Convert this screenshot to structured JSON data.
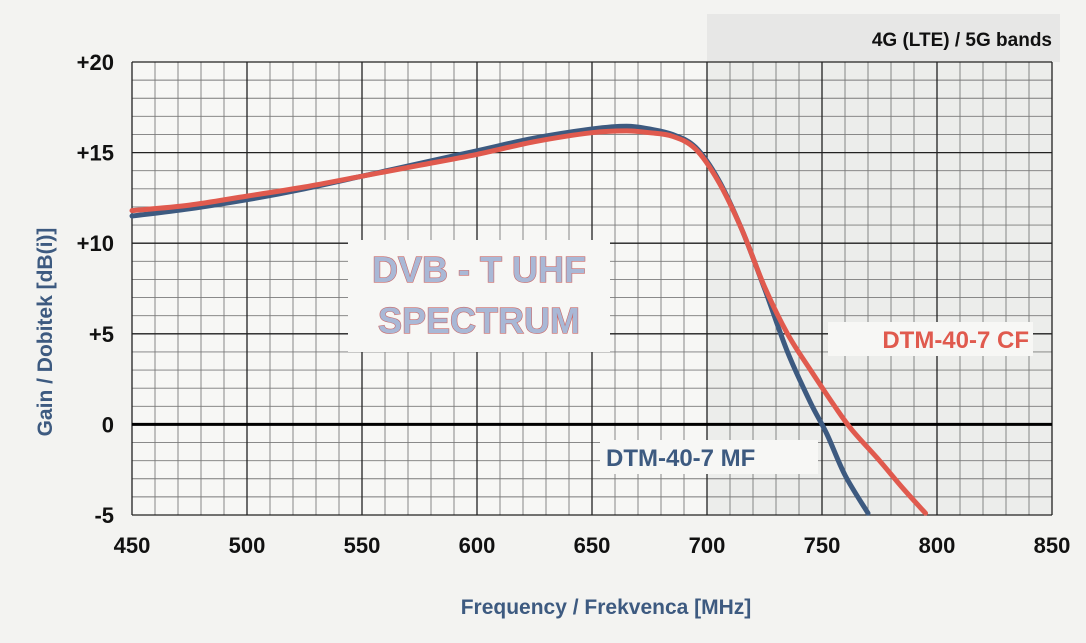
{
  "chart_data": {
    "type": "line",
    "title": "",
    "xlabel": "Frequency / Frekvenca  [MHz]",
    "ylabel": "Gain / Dobitek  [dB(i)]",
    "xlim": [
      450,
      850
    ],
    "ylim": [
      -5,
      20
    ],
    "x_ticks": [
      "450",
      "500",
      "550",
      "600",
      "650",
      "700",
      "750",
      "800",
      "850"
    ],
    "y_ticks": [
      "+20",
      "+15",
      "+10",
      "+5",
      "0",
      "-5"
    ],
    "grid": true,
    "band_label": "4G (LTE) / 5G bands",
    "annotation": [
      "DVB - T UHF",
      "SPECTRUM"
    ],
    "series": [
      {
        "name": "DTM-40-7 MF",
        "color": "#3d5a80",
        "x": [
          450,
          475,
          500,
          525,
          550,
          575,
          600,
          625,
          650,
          665,
          675,
          685,
          695,
          705,
          715,
          725,
          735,
          745,
          752,
          760,
          770
        ],
        "y": [
          11.5,
          11.9,
          12.4,
          13.0,
          13.7,
          14.4,
          15.1,
          15.8,
          16.3,
          16.45,
          16.3,
          16.0,
          15.3,
          13.5,
          10.8,
          7.5,
          4.0,
          1.2,
          -0.5,
          -2.8,
          -4.9
        ]
      },
      {
        "name": "DTM-40-7 CF",
        "color": "#e05a4e",
        "x": [
          450,
          475,
          500,
          525,
          550,
          575,
          600,
          625,
          650,
          665,
          675,
          685,
          695,
          705,
          715,
          725,
          735,
          745,
          755,
          763,
          775,
          785,
          795
        ],
        "y": [
          11.8,
          12.1,
          12.6,
          13.1,
          13.7,
          14.3,
          14.9,
          15.6,
          16.1,
          16.2,
          16.1,
          15.9,
          15.2,
          13.4,
          10.8,
          7.6,
          5.0,
          3.0,
          1.1,
          -0.3,
          -2.0,
          -3.5,
          -4.9
        ]
      }
    ]
  }
}
